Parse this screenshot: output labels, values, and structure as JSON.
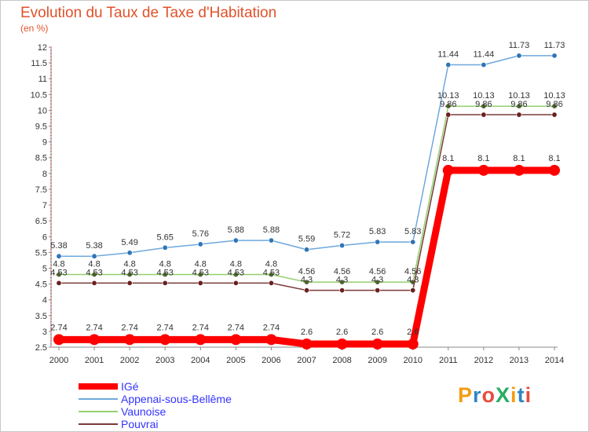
{
  "chart_data": {
    "type": "line",
    "title": "Evolution du Taux de Taxe d'Habitation",
    "unit_label": "(en %)",
    "x": [
      "2000",
      "2001",
      "2002",
      "2003",
      "2004",
      "2005",
      "2006",
      "2007",
      "2008",
      "2009",
      "2010",
      "2011",
      "2012",
      "2013",
      "2014"
    ],
    "ylim": [
      2.5,
      12
    ],
    "yticks": [
      "2.5",
      "3",
      "3.5",
      "4",
      "4.5",
      "5",
      "5.5",
      "6",
      "6.5",
      "7",
      "7.5",
      "8",
      "8.5",
      "9",
      "9.5",
      "10",
      "10.5",
      "11",
      "11.5",
      "12"
    ],
    "grid": false,
    "legend_position": "bottom-left",
    "series": [
      {
        "name": "IGé",
        "color": "#ff0000",
        "values": [
          2.74,
          2.74,
          2.74,
          2.74,
          2.74,
          2.74,
          2.74,
          2.6,
          2.6,
          2.6,
          2.6,
          8.1,
          8.1,
          8.1,
          8.1
        ],
        "labels": [
          "2.74",
          "2.74",
          "2.74",
          "2.74",
          "2.74",
          "2.74",
          "2.74",
          "2.6",
          "2.6",
          "2.6",
          "2.6",
          "8.1",
          "8.1",
          "8.1",
          "8.1"
        ]
      },
      {
        "name": "Appenai-sous-Bellême",
        "color": "#6fa8dc",
        "values": [
          5.38,
          5.38,
          5.49,
          5.65,
          5.76,
          5.88,
          5.88,
          5.59,
          5.72,
          5.83,
          5.83,
          11.44,
          11.44,
          11.73,
          11.73
        ],
        "labels": [
          "5.38",
          "5.38",
          "5.49",
          "5.65",
          "5.76",
          "5.88",
          "5.88",
          "5.59",
          "5.72",
          "5.83",
          "5.83",
          "11.44",
          "11.44",
          "11.73",
          "11.73"
        ]
      },
      {
        "name": "Vaunoise",
        "color": "#93d16f",
        "values": [
          4.8,
          4.8,
          4.8,
          4.8,
          4.8,
          4.8,
          4.8,
          4.56,
          4.56,
          4.56,
          4.56,
          10.13,
          10.13,
          10.13,
          10.13
        ],
        "labels": [
          "4.8",
          "4.8",
          "4.8",
          "4.8",
          "4.8",
          "4.8",
          "4.8",
          "4.56",
          "4.56",
          "4.56",
          "4.56",
          "10.13",
          "10.13",
          "10.13",
          "10.13"
        ]
      },
      {
        "name": "Pouvrai",
        "color": "#7a3a3a",
        "values": [
          4.53,
          4.53,
          4.53,
          4.53,
          4.53,
          4.53,
          4.53,
          4.3,
          4.3,
          4.3,
          4.3,
          9.86,
          9.86,
          9.86,
          9.86
        ],
        "labels": [
          "4.53",
          "4.53",
          "4.53",
          "4.53",
          "4.53",
          "4.53",
          "4.53",
          "4.3",
          "4.3",
          "4.3",
          "4.3",
          "9.86",
          "9.86",
          "9.86",
          "9.86"
        ]
      }
    ]
  },
  "logo": {
    "text": "ProXiti",
    "colors": [
      "#f39c12",
      "#2e86c1",
      "#e74c3c",
      "#27ae60",
      "#f39c12",
      "#2e86c1",
      "#e74c3c"
    ]
  }
}
